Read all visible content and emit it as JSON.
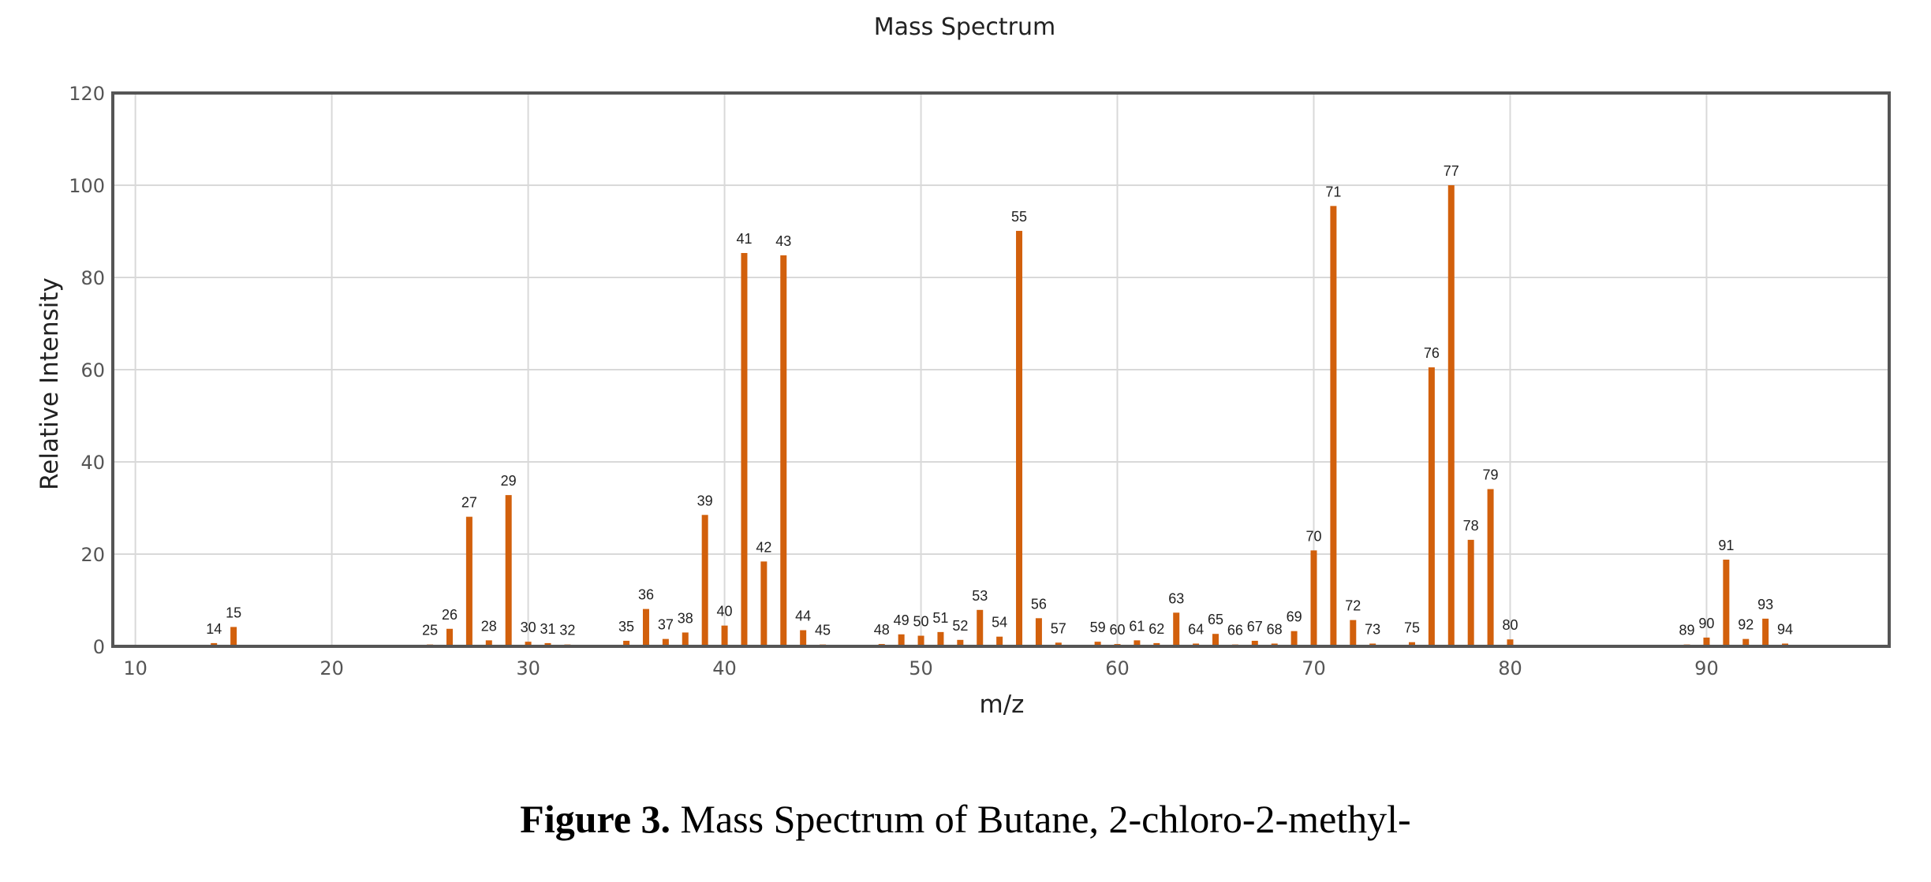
{
  "chart_data": {
    "type": "bar",
    "title": "Mass Spectrum",
    "xlabel": "m/z",
    "ylabel": "Relative Intensity",
    "xlim": [
      8.85,
      99.3
    ],
    "ylim": [
      0,
      120
    ],
    "xticks": [
      10,
      20,
      30,
      40,
      50,
      60,
      70,
      80,
      90
    ],
    "yticks": [
      0,
      20,
      40,
      60,
      80,
      100,
      120
    ],
    "grid": true,
    "legend": "none",
    "bar_color": "#D2600C",
    "peaks": [
      {
        "mz": 14,
        "intensity": 0.7
      },
      {
        "mz": 15,
        "intensity": 4.2
      },
      {
        "mz": 25,
        "intensity": 0.4
      },
      {
        "mz": 26,
        "intensity": 3.8
      },
      {
        "mz": 27,
        "intensity": 28.1
      },
      {
        "mz": 28,
        "intensity": 1.3
      },
      {
        "mz": 29,
        "intensity": 32.8
      },
      {
        "mz": 30,
        "intensity": 1.0
      },
      {
        "mz": 31,
        "intensity": 0.7
      },
      {
        "mz": 32,
        "intensity": 0.4
      },
      {
        "mz": 35,
        "intensity": 1.2
      },
      {
        "mz": 36,
        "intensity": 8.1
      },
      {
        "mz": 37,
        "intensity": 1.6
      },
      {
        "mz": 38,
        "intensity": 3.0
      },
      {
        "mz": 39,
        "intensity": 28.5
      },
      {
        "mz": 40,
        "intensity": 4.5
      },
      {
        "mz": 41,
        "intensity": 85.3
      },
      {
        "mz": 42,
        "intensity": 18.4
      },
      {
        "mz": 43,
        "intensity": 84.8
      },
      {
        "mz": 44,
        "intensity": 3.5
      },
      {
        "mz": 45,
        "intensity": 0.4
      },
      {
        "mz": 48,
        "intensity": 0.5
      },
      {
        "mz": 49,
        "intensity": 2.6
      },
      {
        "mz": 50,
        "intensity": 2.3
      },
      {
        "mz": 51,
        "intensity": 3.1
      },
      {
        "mz": 52,
        "intensity": 1.4
      },
      {
        "mz": 53,
        "intensity": 7.9
      },
      {
        "mz": 54,
        "intensity": 2.1
      },
      {
        "mz": 55,
        "intensity": 90.1
      },
      {
        "mz": 56,
        "intensity": 6.1
      },
      {
        "mz": 57,
        "intensity": 0.8
      },
      {
        "mz": 59,
        "intensity": 1.0
      },
      {
        "mz": 60,
        "intensity": 0.5
      },
      {
        "mz": 61,
        "intensity": 1.3
      },
      {
        "mz": 62,
        "intensity": 0.7
      },
      {
        "mz": 63,
        "intensity": 7.3
      },
      {
        "mz": 64,
        "intensity": 0.6
      },
      {
        "mz": 65,
        "intensity": 2.7
      },
      {
        "mz": 66,
        "intensity": 0.4
      },
      {
        "mz": 67,
        "intensity": 1.2
      },
      {
        "mz": 68,
        "intensity": 0.6
      },
      {
        "mz": 69,
        "intensity": 3.3
      },
      {
        "mz": 70,
        "intensity": 20.8
      },
      {
        "mz": 71,
        "intensity": 95.5
      },
      {
        "mz": 72,
        "intensity": 5.7
      },
      {
        "mz": 73,
        "intensity": 0.6
      },
      {
        "mz": 75,
        "intensity": 0.9
      },
      {
        "mz": 76,
        "intensity": 60.5
      },
      {
        "mz": 77,
        "intensity": 100
      },
      {
        "mz": 78,
        "intensity": 23.1
      },
      {
        "mz": 79,
        "intensity": 34.1
      },
      {
        "mz": 80,
        "intensity": 1.5
      },
      {
        "mz": 89,
        "intensity": 0.4
      },
      {
        "mz": 90,
        "intensity": 1.9
      },
      {
        "mz": 91,
        "intensity": 18.8
      },
      {
        "mz": 92,
        "intensity": 1.6
      },
      {
        "mz": 93,
        "intensity": 6.0
      },
      {
        "mz": 94,
        "intensity": 0.6
      }
    ]
  },
  "caption": {
    "label": "Figure 3.",
    "text": " Mass Spectrum of Butane, 2-chloro-2-methyl-"
  }
}
